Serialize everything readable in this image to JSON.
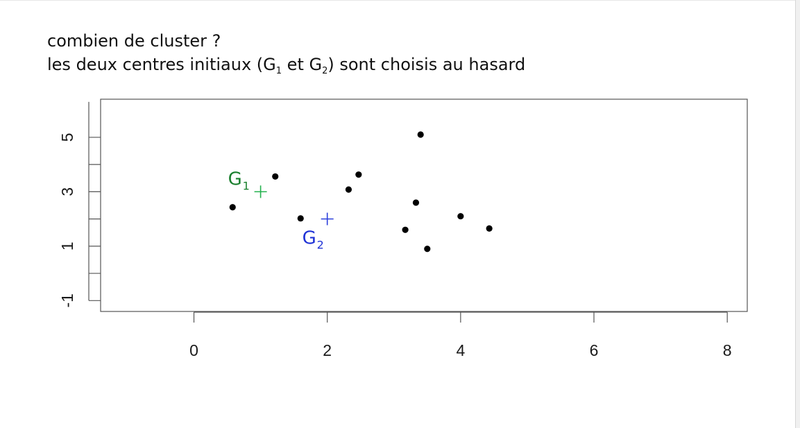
{
  "heading": {
    "line1": "combien de cluster ?",
    "line2_part1": "les deux centres initiaux (G",
    "line2_sub1": "1",
    "line2_part2": " et G",
    "line2_sub2": "2",
    "line2_part3": ") sont choisis au hasard"
  },
  "chart_data": {
    "type": "scatter",
    "xlim": [
      -1.4,
      8.3
    ],
    "ylim": [
      -1.4,
      6.4
    ],
    "x_ticks": [
      0,
      2,
      4,
      6,
      8
    ],
    "x_tick_labels": [
      "0",
      "2",
      "4",
      "6",
      "8"
    ],
    "y_ticks": [
      -1,
      1,
      3,
      5
    ],
    "y_tick_labels": [
      "-1",
      "1",
      "3",
      "5"
    ],
    "y_minor_ticks": [
      0,
      2,
      4
    ],
    "grid": false,
    "points": [
      {
        "x": 0.58,
        "y": 2.43
      },
      {
        "x": 1.22,
        "y": 3.56
      },
      {
        "x": 1.6,
        "y": 2.02
      },
      {
        "x": 2.32,
        "y": 3.08
      },
      {
        "x": 2.47,
        "y": 3.63
      },
      {
        "x": 3.4,
        "y": 5.1
      },
      {
        "x": 3.33,
        "y": 2.6
      },
      {
        "x": 3.17,
        "y": 1.6
      },
      {
        "x": 3.5,
        "y": 0.9
      },
      {
        "x": 4.0,
        "y": 2.1
      },
      {
        "x": 4.43,
        "y": 1.65
      }
    ],
    "centroids": [
      {
        "label": "G",
        "sub": "1",
        "x": 1.0,
        "y": 3.0,
        "color": "#22b14c",
        "label_color": "#1a7f2e"
      },
      {
        "label": "G",
        "sub": "2",
        "x": 2.0,
        "y": 2.0,
        "color": "#2b3fdc",
        "label_color": "#1f32d6"
      }
    ],
    "point_color": "#000000",
    "axis_color": "#555555"
  }
}
